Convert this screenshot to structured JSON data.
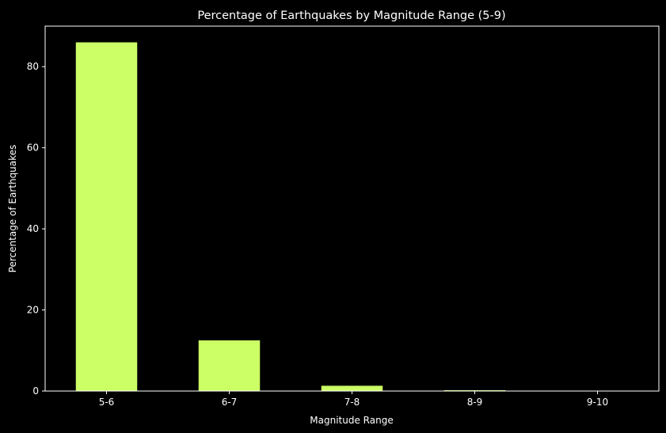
{
  "chart_data": {
    "type": "bar",
    "title": "Percentage of Earthquakes by Magnitude Range (5-9)",
    "xlabel": "Magnitude Range",
    "ylabel": "Percentage of Earthquakes",
    "categories": [
      "5-6",
      "6-7",
      "7-8",
      "8-9",
      "9-10"
    ],
    "values": [
      86.0,
      12.5,
      1.3,
      0.2,
      0.0
    ],
    "ylim": [
      0,
      90
    ],
    "yticks": [
      0,
      20,
      40,
      60,
      80
    ],
    "bar_color": "#ccff66",
    "background_color": "#000000",
    "grid": false
  }
}
